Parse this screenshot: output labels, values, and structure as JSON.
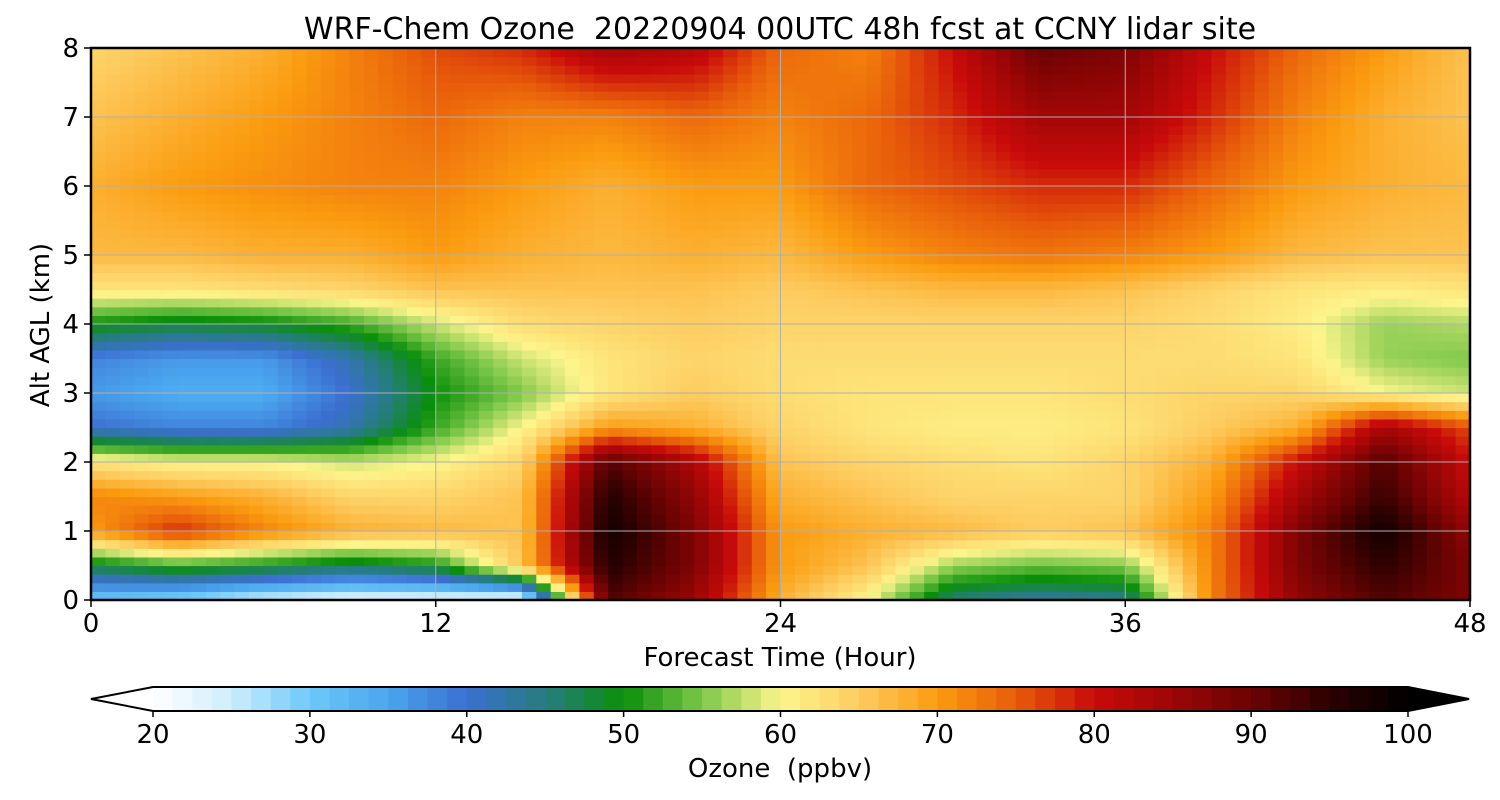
{
  "chart_data": {
    "type": "heatmap",
    "title": "WRF-Chem Ozone  20220904 00UTC 48h fcst at CCNY lidar site",
    "xlabel": "Forecast Time (Hour)",
    "ylabel": "Alt AGL (km)",
    "xlim": [
      0,
      48
    ],
    "ylim": [
      0,
      8
    ],
    "x_ticks": [
      "0",
      "12",
      "24",
      "36",
      "48"
    ],
    "y_ticks": [
      "0",
      "1",
      "2",
      "3",
      "4",
      "5",
      "6",
      "7",
      "8"
    ],
    "grid": true,
    "x": [
      0,
      3,
      6,
      9,
      12,
      15,
      18,
      21,
      24,
      27,
      30,
      33,
      36,
      39,
      42,
      45,
      48
    ],
    "y": [
      0,
      0.5,
      1,
      1.5,
      2,
      2.5,
      3,
      3.5,
      4,
      4.5,
      5,
      6,
      7,
      8
    ],
    "z": [
      [
        30,
        28,
        24,
        22,
        22,
        20,
        92,
        85,
        68,
        60,
        45,
        43,
        44,
        72,
        86,
        92,
        88
      ],
      [
        48,
        52,
        50,
        47,
        50,
        66,
        96,
        88,
        70,
        66,
        56,
        54,
        55,
        72,
        88,
        95,
        88
      ],
      [
        70,
        78,
        72,
        68,
        67,
        66,
        98,
        88,
        70,
        68,
        67,
        65,
        66,
        72,
        88,
        98,
        86
      ],
      [
        72,
        70,
        68,
        64,
        64,
        66,
        96,
        86,
        68,
        66,
        64,
        64,
        64,
        70,
        84,
        94,
        82
      ],
      [
        62,
        60,
        60,
        58,
        60,
        64,
        92,
        83,
        66,
        64,
        63,
        62,
        64,
        68,
        80,
        92,
        80
      ],
      [
        40,
        38,
        38,
        42,
        52,
        60,
        70,
        68,
        64,
        62,
        61,
        61,
        62,
        65,
        68,
        84,
        76
      ],
      [
        36,
        34,
        34,
        40,
        50,
        55,
        62,
        65,
        63,
        62,
        62,
        62,
        63,
        64,
        64,
        60,
        58
      ],
      [
        38,
        36,
        36,
        42,
        52,
        58,
        62,
        64,
        63,
        63,
        63,
        63,
        63,
        63,
        62,
        56,
        55
      ],
      [
        50,
        48,
        49,
        52,
        58,
        63,
        64,
        65,
        64,
        64,
        64,
        64,
        64,
        63,
        61,
        56,
        57
      ],
      [
        62,
        62,
        63,
        64,
        66,
        66,
        66,
        66,
        65,
        66,
        67,
        67,
        66,
        64,
        62,
        61,
        62
      ],
      [
        67,
        67,
        68,
        68,
        70,
        68,
        67,
        68,
        67,
        70,
        72,
        73,
        72,
        70,
        67,
        66,
        66
      ],
      [
        68,
        70,
        71,
        72,
        72,
        70,
        68,
        70,
        70,
        74,
        76,
        78,
        78,
        74,
        70,
        68,
        67
      ],
      [
        66,
        68,
        70,
        72,
        74,
        72,
        72,
        74,
        72,
        74,
        78,
        84,
        84,
        78,
        72,
        68,
        66
      ],
      [
        64,
        66,
        68,
        72,
        76,
        78,
        84,
        82,
        74,
        72,
        80,
        90,
        88,
        80,
        74,
        70,
        66
      ]
    ],
    "colorbar": {
      "label": "Ozone  (ppbv)",
      "range": [
        20,
        100
      ],
      "ticks": [
        "20",
        "30",
        "40",
        "50",
        "60",
        "70",
        "80",
        "90",
        "100"
      ],
      "extend": "both",
      "stops": [
        {
          "v": 20,
          "c": "#ffffff"
        },
        {
          "v": 25,
          "c": "#cdeefd"
        },
        {
          "v": 30,
          "c": "#6dc8f8"
        },
        {
          "v": 35,
          "c": "#4aa5ee"
        },
        {
          "v": 40,
          "c": "#3b6fd0"
        },
        {
          "v": 45,
          "c": "#267d80"
        },
        {
          "v": 50,
          "c": "#0a8f0a"
        },
        {
          "v": 55,
          "c": "#7ec84a"
        },
        {
          "v": 60,
          "c": "#fdf58c"
        },
        {
          "v": 65,
          "c": "#fdcc60"
        },
        {
          "v": 70,
          "c": "#fb9c10"
        },
        {
          "v": 75,
          "c": "#e85c0a"
        },
        {
          "v": 80,
          "c": "#c80a0a"
        },
        {
          "v": 85,
          "c": "#9c0606"
        },
        {
          "v": 90,
          "c": "#6a0303"
        },
        {
          "v": 95,
          "c": "#2c0101"
        },
        {
          "v": 100,
          "c": "#000000"
        }
      ]
    }
  }
}
